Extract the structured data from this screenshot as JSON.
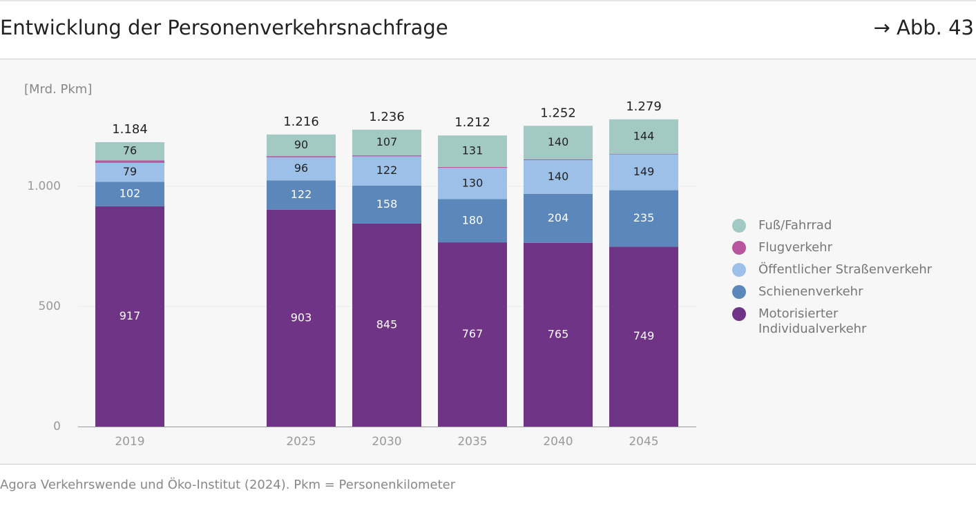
{
  "header": {
    "title": "Entwicklung der Personenverkehrsnachfrage",
    "figure_ref": "→ Abb. 43"
  },
  "chart_data": {
    "type": "stacked_bar",
    "y_label": "[Mrd. Pkm]",
    "categories": [
      "2019",
      null,
      "2025",
      "2030",
      "2035",
      "2040",
      "2045"
    ],
    "series": [
      {
        "name": "Motorisierter Individualverkehr",
        "color": "#6f3485",
        "values": [
          917,
          null,
          903,
          845,
          767,
          765,
          749
        ]
      },
      {
        "name": "Schienenverkehr",
        "color": "#5b87bb",
        "values": [
          102,
          null,
          122,
          158,
          180,
          204,
          235
        ]
      },
      {
        "name": "Öffentlicher Straßenverkehr",
        "color": "#9dc0e8",
        "values": [
          79,
          null,
          96,
          122,
          130,
          140,
          149
        ]
      },
      {
        "name": "Flugverkehr",
        "color": "#b9549f",
        "values": [
          10,
          null,
          5,
          4,
          4,
          3,
          2
        ],
        "labels": false
      },
      {
        "name": "Fuß/Fahrrad",
        "color": "#a3c9c4",
        "values": [
          76,
          null,
          90,
          107,
          131,
          140,
          144
        ]
      }
    ],
    "totals": {
      "values": [
        1184,
        null,
        1216,
        1236,
        1212,
        1252,
        1279
      ],
      "value_labels": [
        "1.184",
        null,
        "1.216",
        "1.236",
        "1.212",
        "1.252",
        "1.279"
      ]
    },
    "ylim": [
      0,
      1500
    ],
    "yticks": [
      0,
      500,
      {
        "value": 1000,
        "label": "1.000"
      }
    ],
    "grid": true,
    "legend": "right"
  },
  "footer": {
    "source": "Agora Verkehrswende und Öko-Institut (2024). Pkm = Personenkilometer"
  }
}
